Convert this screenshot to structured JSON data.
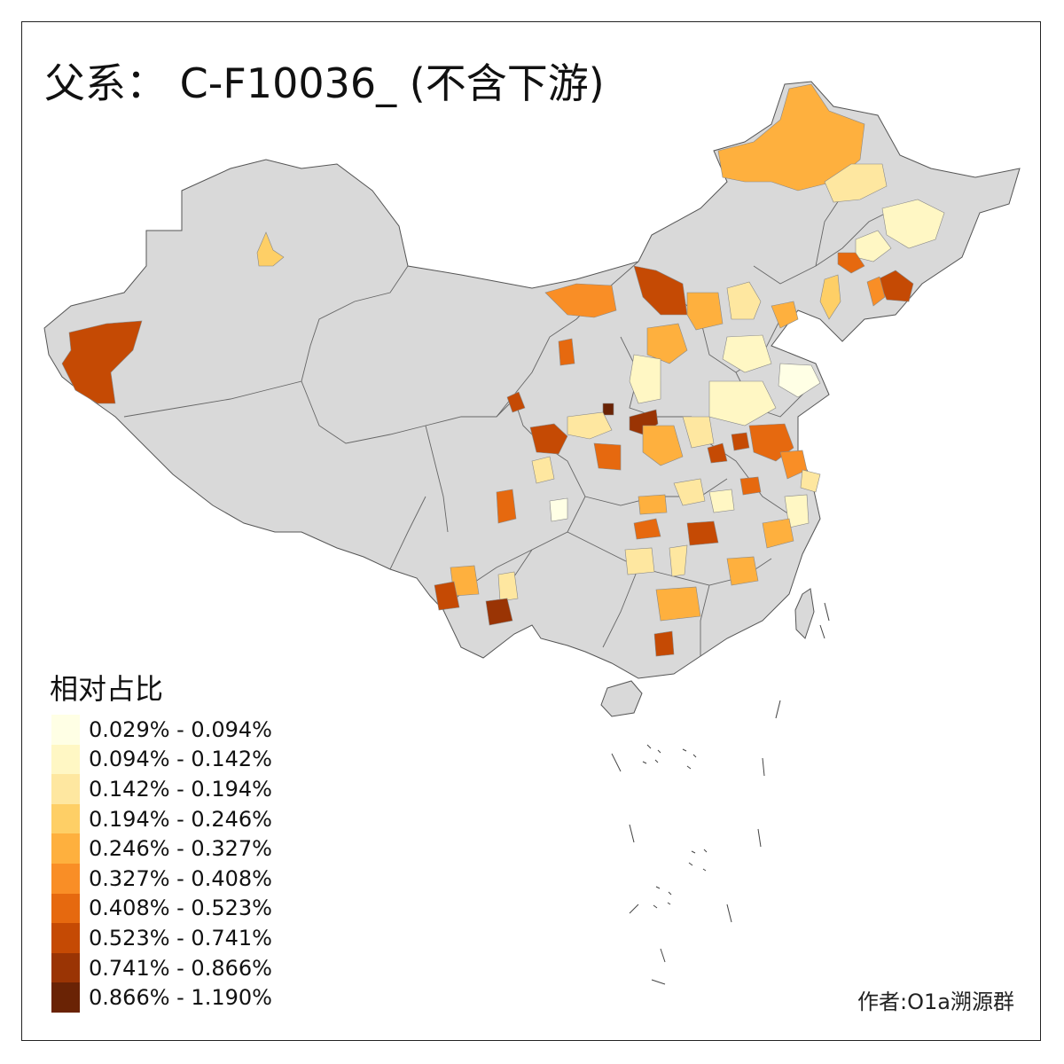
{
  "title": "父系： C-F10036_ (不含下游)",
  "legend": {
    "title": "相对占比",
    "bins": [
      {
        "label": "0.029% - 0.094%",
        "color": "#FFFFE5"
      },
      {
        "label": "0.094% - 0.142%",
        "color": "#FFF7C4"
      },
      {
        "label": "0.142% - 0.194%",
        "color": "#FEE7A0"
      },
      {
        "label": "0.194% - 0.246%",
        "color": "#FECF66"
      },
      {
        "label": "0.246% - 0.327%",
        "color": "#FEB03E"
      },
      {
        "label": "0.327% - 0.408%",
        "color": "#F98E26"
      },
      {
        "label": "0.408% - 0.523%",
        "color": "#E6690F"
      },
      {
        "label": "0.523% - 0.741%",
        "color": "#C54A04"
      },
      {
        "label": "0.741% - 0.866%",
        "color": "#9A3404"
      },
      {
        "label": "0.866% - 1.190%",
        "color": "#6A2305"
      }
    ]
  },
  "credit": "作者:O1a溯源群",
  "colors": {
    "base": "#D9D9D9",
    "border": "#555555"
  }
}
